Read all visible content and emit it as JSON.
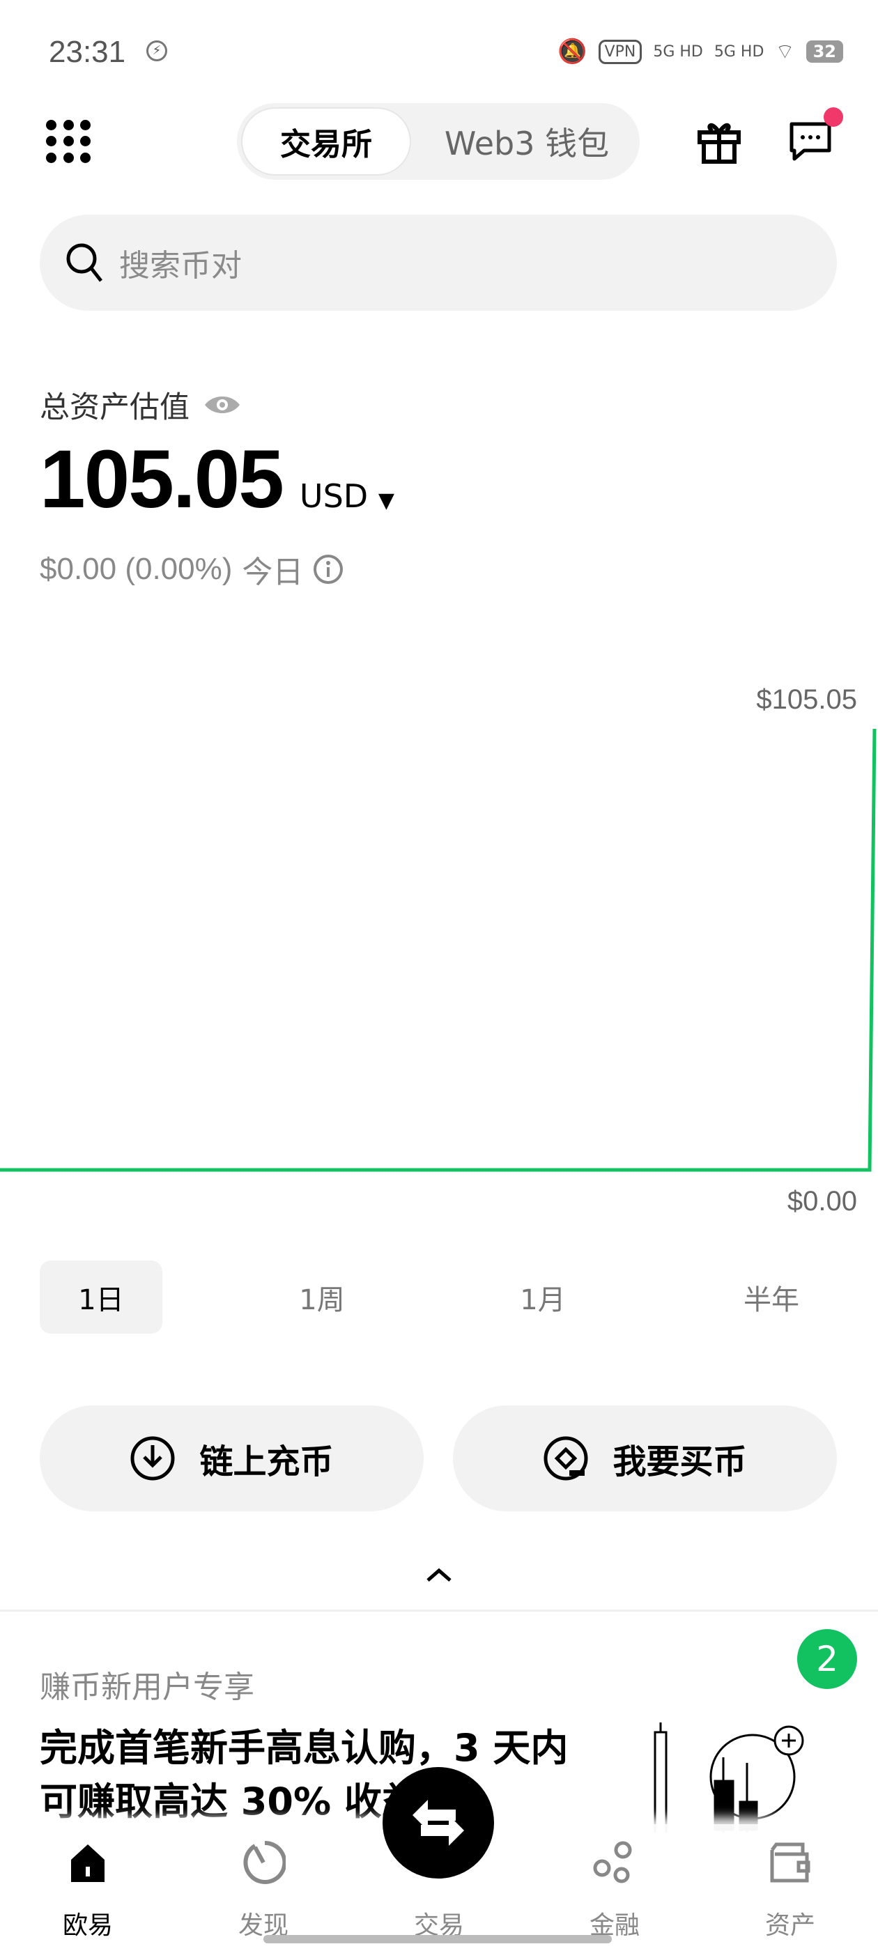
{
  "status_bar": {
    "time": "23:31",
    "vpn": "VPN",
    "net1": "5G HD",
    "net2": "5G HD",
    "battery": "32"
  },
  "header": {
    "tabs": [
      {
        "label": "交易所",
        "active": true
      },
      {
        "label": "Web3 钱包",
        "active": false
      }
    ],
    "notification_dot_color": "#f0386b"
  },
  "search": {
    "placeholder": "搜索币对"
  },
  "assets": {
    "label": "总资产估值",
    "value": "105.05",
    "currency": "USD",
    "change": "$0.00 (0.00%)",
    "period": "今日"
  },
  "chart": {
    "max_label": "$105.05",
    "min_label": "$0.00",
    "line_color": "#12c15f"
  },
  "ranges": [
    {
      "label": "1日",
      "active": true
    },
    {
      "label": "1周"
    },
    {
      "label": "1月"
    },
    {
      "label": "半年"
    }
  ],
  "actions": {
    "deposit": "链上充币",
    "buy": "我要买币"
  },
  "promo": {
    "title": "赚币新用户专享",
    "headline": "完成首笔新手高息认购，3 天内可赚取高达 30% 收益",
    "badge": "2"
  },
  "bottom_nav": [
    {
      "label": "欧易",
      "active": true
    },
    {
      "label": "发现"
    },
    {
      "label": "交易"
    },
    {
      "label": "金融"
    },
    {
      "label": "资产"
    }
  ]
}
